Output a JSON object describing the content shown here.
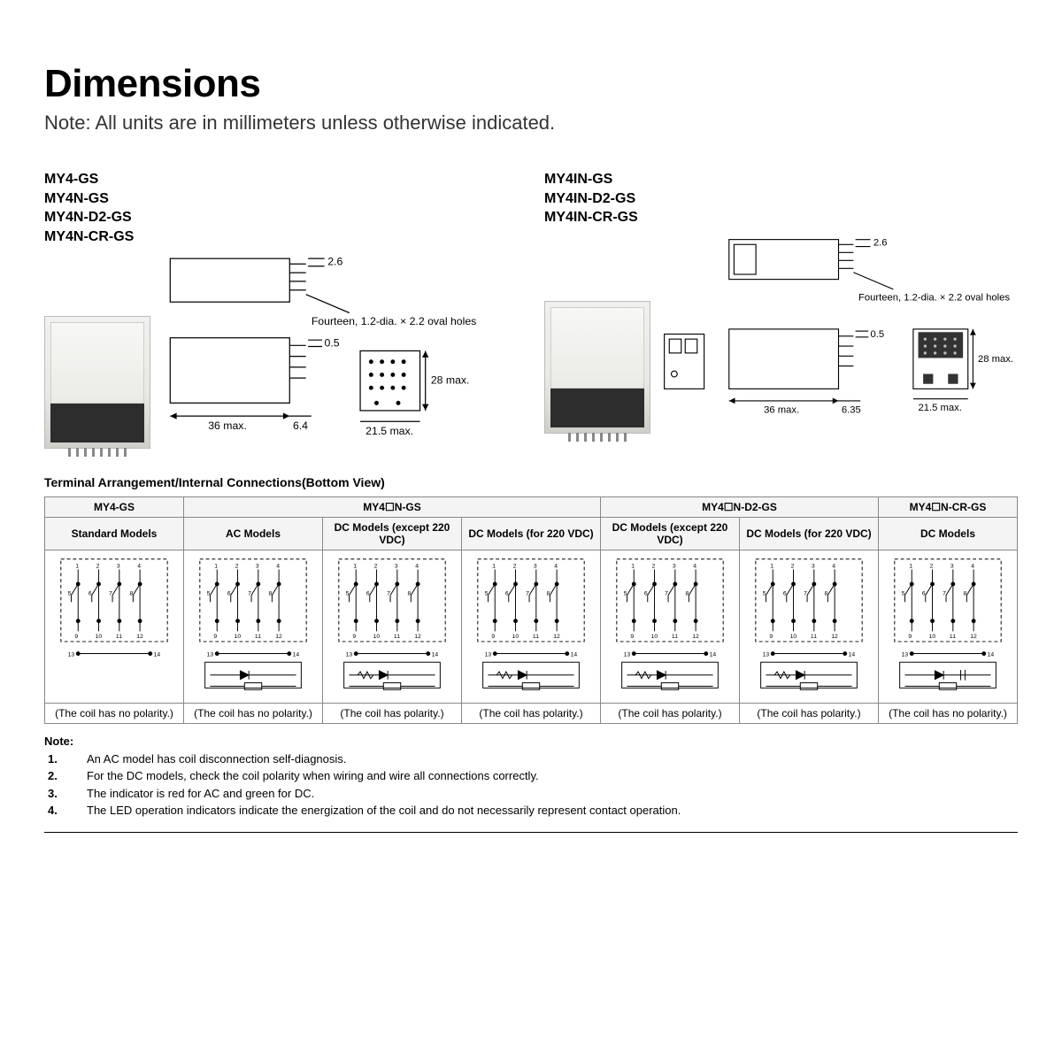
{
  "title": "Dimensions",
  "top_note": "Note: All units are in millimeters unless otherwise indicated.",
  "left_models": [
    "MY4-GS",
    "MY4N-GS",
    "MY4N-D2-GS",
    "MY4N-CR-GS"
  ],
  "right_models": [
    "MY4IN-GS",
    "MY4IN-D2-GS",
    "MY4IN-CR-GS"
  ],
  "dim_labels": {
    "hole_note": "Fourteen, 1.2-dia. × 2.2 oval holes",
    "d26": "2.6",
    "d05": "0.5",
    "d28": "28 max.",
    "d36": "36 max.",
    "d64": "6.4",
    "d635": "6.35",
    "d215": "21.5 max."
  },
  "section_title": "Terminal Arrangement/Internal Connections(Bottom View)",
  "table": {
    "group_headers": [
      "MY4-GS",
      "MY4☐N-GS",
      "MY4☐N-D2-GS",
      "MY4☐N-CR-GS"
    ],
    "group_spans": [
      1,
      3,
      2,
      1
    ],
    "sub_headers": [
      "Standard Models",
      "AC Models",
      "DC Models (except 220 VDC)",
      "DC Models (for 220 VDC)",
      "DC Models (except 220 VDC)",
      "DC Models (for 220 VDC)",
      "DC Models"
    ],
    "polarity": [
      "(The coil has no polarity.)",
      "(The coil has no polarity.)",
      "(The coil has polarity.)",
      "(The coil has polarity.)",
      "(The coil has polarity.)",
      "(The coil has polarity.)",
      "(The coil has no polarity.)"
    ],
    "schem_variants": [
      "plain",
      "led",
      "led_diode",
      "led_diode",
      "led_diode",
      "led_diode",
      "led_rc"
    ]
  },
  "notes_lead": "Note:",
  "notes": [
    "An AC model has coil disconnection self-diagnosis.",
    "For the DC models, check the coil polarity when wiring and wire all connections correctly.",
    "The indicator is red for AC and green for DC.",
    "The LED operation indicators indicate the energization of the coil and do not necessarily represent contact operation."
  ],
  "colors": {
    "text": "#000000",
    "grid": "#888888",
    "header_bg": "#f4f4f4",
    "relay_tint": "#e8e8e4"
  }
}
